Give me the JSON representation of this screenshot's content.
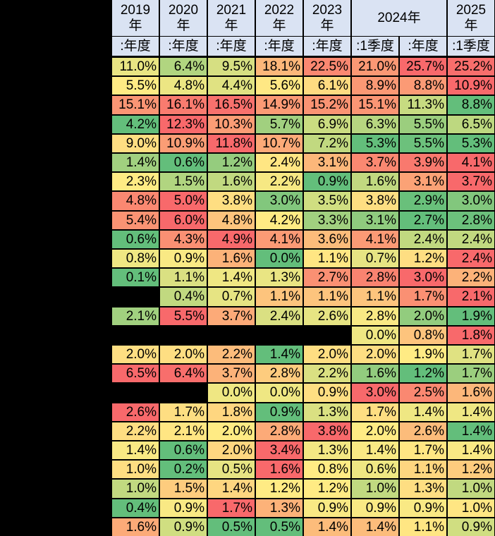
{
  "colors": {
    "header": "#dae3f3",
    "low": "#63be7b",
    "mid": "#ffeb84",
    "high": "#f8696b",
    "background": "#000000"
  },
  "header": {
    "year_row": [
      {
        "text": "2019\n年",
        "span": 1
      },
      {
        "text": "2020\n年",
        "span": 1
      },
      {
        "text": "2021\n年",
        "span": 1
      },
      {
        "text": "2022\n年",
        "span": 1
      },
      {
        "text": "2023\n年",
        "span": 1
      },
      {
        "text": "2024年",
        "span": 2
      },
      {
        "text": "2025\n年",
        "span": 1
      }
    ],
    "period_row": [
      ":年度",
      ":年度",
      ":年度",
      ":年度",
      ":年度",
      ":1季度",
      ":年度",
      ":1季度"
    ]
  },
  "rows": [
    {
      "values": [
        "11.0%",
        "6.4%",
        "9.5%",
        "18.1%",
        "22.5%",
        "21.0%",
        "25.7%",
        "25.2%"
      ],
      "levels": [
        0.43,
        0.25,
        0.37,
        0.7,
        0.88,
        0.82,
        1.0,
        0.98
      ]
    },
    {
      "values": [
        "5.5%",
        "4.8%",
        "4.4%",
        "5.6%",
        "6.1%",
        "8.9%",
        "8.8%",
        "10.9%"
      ],
      "levels": [
        0.5,
        0.44,
        0.4,
        0.51,
        0.56,
        0.82,
        0.81,
        1.0
      ]
    },
    {
      "values": [
        "15.1%",
        "16.1%",
        "16.5%",
        "14.9%",
        "15.2%",
        "15.1%",
        "11.3%",
        "8.8%"
      ],
      "levels": [
        0.83,
        0.93,
        0.97,
        0.81,
        0.84,
        0.83,
        0.32,
        0.0
      ]
    },
    {
      "values": [
        "4.2%",
        "12.3%",
        "10.3%",
        "5.7%",
        "6.9%",
        "6.3%",
        "5.5%",
        "6.5%"
      ],
      "levels": [
        0.0,
        1.0,
        0.8,
        0.2,
        0.33,
        0.27,
        0.18,
        0.29
      ]
    },
    {
      "values": [
        "9.0%",
        "10.9%",
        "11.8%",
        "10.7%",
        "7.2%",
        "5.3%",
        "5.5%",
        "5.3%"
      ],
      "levels": [
        0.55,
        0.8,
        1.0,
        0.75,
        0.3,
        0.0,
        0.03,
        0.0
      ]
    },
    {
      "values": [
        "1.4%",
        "0.6%",
        "1.2%",
        "2.4%",
        "3.1%",
        "3.7%",
        "3.9%",
        "4.1%"
      ],
      "levels": [
        0.2,
        0.0,
        0.16,
        0.52,
        0.7,
        0.88,
        0.94,
        1.0
      ]
    },
    {
      "values": [
        "2.3%",
        "1.5%",
        "1.6%",
        "2.2%",
        "0.9%",
        "1.6%",
        "3.1%",
        "3.7%"
      ],
      "levels": [
        0.5,
        0.25,
        0.3,
        0.47,
        0.0,
        0.3,
        0.78,
        1.0
      ]
    },
    {
      "values": [
        "4.8%",
        "5.0%",
        "3.8%",
        "3.0%",
        "3.5%",
        "3.8%",
        "2.9%",
        "3.0%"
      ],
      "levels": [
        0.88,
        1.0,
        0.55,
        0.1,
        0.35,
        0.55,
        0.02,
        0.1
      ]
    },
    {
      "values": [
        "5.4%",
        "6.0%",
        "4.8%",
        "4.2%",
        "3.3%",
        "3.1%",
        "2.7%",
        "2.8%"
      ],
      "levels": [
        0.84,
        1.0,
        0.65,
        0.5,
        0.2,
        0.14,
        0.0,
        0.03
      ]
    },
    {
      "values": [
        "0.6%",
        "4.3%",
        "4.9%",
        "4.1%",
        "3.6%",
        "4.1%",
        "2.4%",
        "2.4%"
      ],
      "levels": [
        0.0,
        0.85,
        1.0,
        0.81,
        0.68,
        0.81,
        0.3,
        0.3
      ]
    },
    {
      "values": [
        "0.8%",
        "0.9%",
        "1.6%",
        "0.0%",
        "1.1%",
        "0.7%",
        "1.2%",
        "2.4%"
      ],
      "levels": [
        0.45,
        0.48,
        0.72,
        0.0,
        0.52,
        0.42,
        0.55,
        1.0
      ]
    },
    {
      "values": [
        "0.1%",
        "1.1%",
        "1.4%",
        "1.3%",
        "2.7%",
        "2.8%",
        "3.0%",
        "2.2%"
      ],
      "levels": [
        0.0,
        0.38,
        0.45,
        0.43,
        0.85,
        0.9,
        1.0,
        0.72
      ]
    },
    {
      "values": [
        "",
        "0.4%",
        "0.7%",
        "1.1%",
        "1.1%",
        "1.1%",
        "1.7%",
        "2.1%"
      ],
      "levels": [
        null,
        0.3,
        0.42,
        0.65,
        0.65,
        0.65,
        0.85,
        1.0
      ]
    },
    {
      "values": [
        "2.1%",
        "5.5%",
        "3.7%",
        "2.4%",
        "2.6%",
        "2.8%",
        "2.0%",
        "1.9%"
      ],
      "levels": [
        0.2,
        1.0,
        0.75,
        0.38,
        0.42,
        0.48,
        0.15,
        0.0
      ]
    },
    {
      "values": [
        "",
        "",
        "",
        "",
        "",
        "0.0%",
        "0.8%",
        "1.8%"
      ],
      "levels": [
        null,
        null,
        null,
        null,
        null,
        0.45,
        0.65,
        1.0
      ]
    },
    {
      "values": [
        "2.0%",
        "2.0%",
        "2.2%",
        "1.4%",
        "2.0%",
        "2.0%",
        "1.9%",
        "1.7%"
      ],
      "levels": [
        0.55,
        0.55,
        0.68,
        0.0,
        0.55,
        0.55,
        0.5,
        0.4
      ]
    },
    {
      "values": [
        "6.5%",
        "6.4%",
        "3.7%",
        "2.8%",
        "2.2%",
        "1.6%",
        "1.2%",
        "1.7%"
      ],
      "levels": [
        1.0,
        0.98,
        0.72,
        0.62,
        0.38,
        0.15,
        0.0,
        0.18
      ]
    },
    {
      "values": [
        "",
        "",
        "0.0%",
        "0.0%",
        "0.9%",
        "3.0%",
        "2.5%",
        "1.6%"
      ],
      "levels": [
        null,
        null,
        0.45,
        0.45,
        0.55,
        1.0,
        0.88,
        0.7
      ]
    },
    {
      "values": [
        "2.6%",
        "1.7%",
        "1.8%",
        "0.9%",
        "1.3%",
        "1.7%",
        "1.4%",
        "1.4%"
      ],
      "levels": [
        1.0,
        0.55,
        0.58,
        0.0,
        0.38,
        0.55,
        0.45,
        0.45
      ]
    },
    {
      "values": [
        "2.2%",
        "2.1%",
        "2.0%",
        "2.8%",
        "3.8%",
        "2.0%",
        "2.6%",
        "1.4%"
      ],
      "levels": [
        0.55,
        0.52,
        0.5,
        0.75,
        1.0,
        0.5,
        0.68,
        0.0
      ]
    },
    {
      "values": [
        "1.4%",
        "0.6%",
        "2.0%",
        "3.4%",
        "1.3%",
        "1.4%",
        "1.7%",
        "1.4%"
      ],
      "levels": [
        0.48,
        0.0,
        0.58,
        1.0,
        0.46,
        0.48,
        0.52,
        0.48
      ]
    },
    {
      "values": [
        "1.0%",
        "0.2%",
        "0.5%",
        "1.6%",
        "0.8%",
        "0.6%",
        "1.1%",
        "1.2%"
      ],
      "levels": [
        0.55,
        0.0,
        0.42,
        1.0,
        0.5,
        0.45,
        0.58,
        0.62
      ]
    },
    {
      "values": [
        "1.0%",
        "1.5%",
        "1.4%",
        "1.2%",
        "1.2%",
        "1.0%",
        "1.3%",
        "1.0%"
      ],
      "levels": [
        0.3,
        0.62,
        0.58,
        0.5,
        0.5,
        0.3,
        0.55,
        0.3
      ]
    },
    {
      "values": [
        "0.4%",
        "0.9%",
        "1.7%",
        "1.3%",
        "0.9%",
        "0.9%",
        "0.9%",
        "1.0%"
      ],
      "levels": [
        0.0,
        0.48,
        1.0,
        0.72,
        0.48,
        0.48,
        0.48,
        0.52
      ]
    },
    {
      "values": [
        "1.6%",
        "0.9%",
        "0.5%",
        "0.5%",
        "1.4%",
        "1.4%",
        "1.1%",
        "0.9%"
      ],
      "levels": [
        0.75,
        0.35,
        0.0,
        0.0,
        0.68,
        0.68,
        0.52,
        0.35
      ]
    }
  ]
}
